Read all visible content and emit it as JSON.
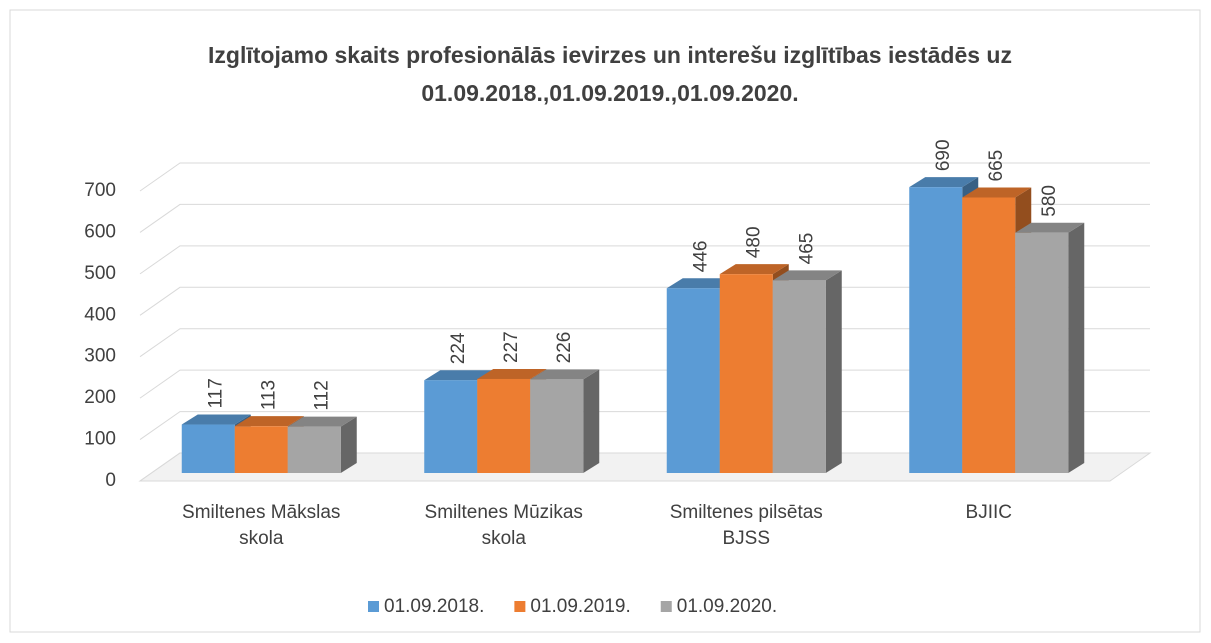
{
  "chart_data": {
    "type": "bar3d",
    "title": "Izglītojamo skaits profesionālās ievirzes un interešu izglītības iestādēs uz 01.09.2018.,01.09.2019.,01.09.2020.",
    "categories": [
      "Smiltenes Mākslas skola",
      "Smiltenes Mūzikas skola",
      "Smiltenes pilsētas BJSS",
      "BJIIC"
    ],
    "series": [
      {
        "name": "01.09.2018.",
        "color": "#5b9bd5",
        "values": [
          117,
          224,
          446,
          690
        ]
      },
      {
        "name": "01.09.2019.",
        "color": "#ed7d31",
        "values": [
          113,
          227,
          480,
          665
        ]
      },
      {
        "name": "01.09.2020.",
        "color": "#a5a5a5",
        "values": [
          112,
          226,
          465,
          580
        ]
      }
    ],
    "ylim": [
      0,
      700
    ],
    "yticks": [
      0,
      100,
      200,
      300,
      400,
      500,
      600,
      700
    ],
    "grid": true,
    "legend": "bottom"
  }
}
